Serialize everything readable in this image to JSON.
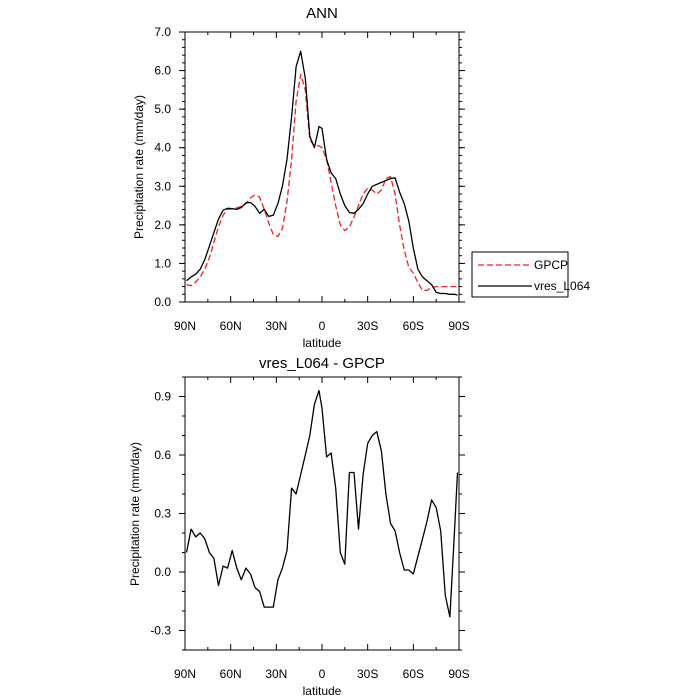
{
  "chart_data": [
    {
      "type": "line",
      "title": "ANN",
      "xlabel": "latitude",
      "ylabel": "Precipitation rate (mm/day)",
      "xlim": [
        90,
        -90
      ],
      "ylim": [
        0,
        7
      ],
      "x_ticks": [
        90,
        60,
        30,
        0,
        -30,
        -60,
        -90
      ],
      "x_tick_labels": [
        "90N",
        "60N",
        "30N",
        "0",
        "30S",
        "60S",
        "90S"
      ],
      "y_ticks": [
        0,
        1,
        2,
        3,
        4,
        5,
        6,
        7
      ],
      "y_tick_labels": [
        "0.0",
        "1.0",
        "2.0",
        "3.0",
        "4.0",
        "5.0",
        "6.0",
        "7.0"
      ],
      "legend": {
        "position": "right",
        "entries": [
          "GPCP",
          "vres_L064"
        ]
      },
      "series": [
        {
          "name": "GPCP",
          "color": "#ee2222",
          "dash": "dashed",
          "x": [
            89,
            86,
            83,
            80,
            77,
            74,
            71,
            68,
            65,
            62,
            59,
            56,
            53,
            50,
            47,
            44,
            41,
            38,
            35,
            32,
            29,
            26,
            23,
            20,
            17,
            14,
            11,
            8,
            5,
            2,
            0,
            -3,
            -6,
            -9,
            -12,
            -15,
            -18,
            -21,
            -24,
            -27,
            -30,
            -33,
            -36,
            -39,
            -42,
            -45,
            -48,
            -51,
            -54,
            -57,
            -60,
            -63,
            -66,
            -69,
            -72,
            -75,
            -78,
            -81,
            -84,
            -87,
            -89
          ],
          "values": [
            0.45,
            0.42,
            0.52,
            0.65,
            0.85,
            1.15,
            1.55,
            1.95,
            2.25,
            2.4,
            2.42,
            2.44,
            2.48,
            2.55,
            2.7,
            2.78,
            2.72,
            2.4,
            2.05,
            1.75,
            1.7,
            1.9,
            2.6,
            3.7,
            5.2,
            5.9,
            5.5,
            4.2,
            4.05,
            4.05,
            4.0,
            3.7,
            3.1,
            2.5,
            2.0,
            1.85,
            1.95,
            2.2,
            2.5,
            2.8,
            2.95,
            2.9,
            2.8,
            2.9,
            3.2,
            3.25,
            2.8,
            2.0,
            1.35,
            0.9,
            0.75,
            0.5,
            0.3,
            0.3,
            0.38,
            0.4,
            0.4,
            0.4,
            0.4,
            0.4,
            0.4
          ]
        },
        {
          "name": "vres_L064",
          "color": "#000000",
          "dash": "solid",
          "x": [
            89,
            86,
            83,
            80,
            77,
            74,
            71,
            68,
            65,
            62,
            59,
            56,
            53,
            50,
            47,
            44,
            41,
            38,
            35,
            32,
            29,
            26,
            23,
            20,
            17,
            14,
            11,
            8,
            5,
            2,
            0,
            -3,
            -6,
            -9,
            -12,
            -15,
            -18,
            -21,
            -24,
            -27,
            -30,
            -33,
            -36,
            -39,
            -42,
            -45,
            -48,
            -51,
            -54,
            -57,
            -60,
            -63,
            -66,
            -69,
            -72,
            -75,
            -78,
            -81,
            -84,
            -87,
            -89
          ],
          "values": [
            0.55,
            0.65,
            0.72,
            0.85,
            1.1,
            1.45,
            1.8,
            2.15,
            2.38,
            2.43,
            2.42,
            2.4,
            2.45,
            2.57,
            2.58,
            2.48,
            2.3,
            2.4,
            2.22,
            2.25,
            2.55,
            3.0,
            3.7,
            4.8,
            6.1,
            6.5,
            5.8,
            4.3,
            4.0,
            4.55,
            4.5,
            3.7,
            3.35,
            3.2,
            2.8,
            2.5,
            2.32,
            2.3,
            2.4,
            2.55,
            2.8,
            3.0,
            3.05,
            3.1,
            3.15,
            3.2,
            3.22,
            2.85,
            2.55,
            2.1,
            1.4,
            0.85,
            0.65,
            0.55,
            0.45,
            0.25,
            0.22,
            0.22,
            0.2,
            0.2,
            0.18
          ]
        }
      ]
    },
    {
      "type": "line",
      "title": "vres_L064 - GPCP",
      "xlabel": "latitude",
      "ylabel": "Precipitation rate (mm/day)",
      "xlim": [
        90,
        -90
      ],
      "ylim": [
        -0.4,
        1.0
      ],
      "x_ticks": [
        90,
        60,
        30,
        0,
        -30,
        -60,
        -90
      ],
      "x_tick_labels": [
        "90N",
        "60N",
        "30N",
        "0",
        "30S",
        "60S",
        "90S"
      ],
      "y_ticks": [
        -0.3,
        0,
        0.3,
        0.6,
        0.9
      ],
      "y_tick_labels": [
        "-0.3",
        "0.0",
        "0.3",
        "0.6",
        "0.9"
      ],
      "series": [
        {
          "name": "vres_L064 - GPCP",
          "color": "#000000",
          "dash": "solid",
          "x": [
            89,
            86,
            83,
            80,
            77,
            74,
            71,
            68,
            65,
            62,
            59,
            56,
            53,
            50,
            47,
            44,
            41,
            38,
            35,
            32,
            29,
            26,
            23,
            20,
            17,
            14,
            11,
            8,
            5,
            2,
            0,
            -3,
            -6,
            -9,
            -12,
            -15,
            -18,
            -21,
            -24,
            -27,
            -30,
            -33,
            -36,
            -39,
            -42,
            -45,
            -48,
            -51,
            -54,
            -57,
            -60,
            -63,
            -66,
            -69,
            -72,
            -75,
            -78,
            -81,
            -84,
            -87,
            -89
          ],
          "values": [
            0.1,
            0.22,
            0.18,
            0.2,
            0.17,
            0.1,
            0.07,
            -0.07,
            0.03,
            0.02,
            0.11,
            0.02,
            -0.04,
            0.02,
            -0.01,
            -0.08,
            -0.1,
            -0.18,
            -0.18,
            -0.18,
            -0.04,
            0.02,
            0.11,
            0.43,
            0.4,
            0.5,
            0.6,
            0.7,
            0.86,
            0.93,
            0.84,
            0.59,
            0.61,
            0.43,
            0.1,
            0.04,
            0.51,
            0.51,
            0.22,
            0.5,
            0.66,
            0.7,
            0.72,
            0.62,
            0.4,
            0.25,
            0.21,
            0.1,
            0.01,
            0.01,
            -0.01,
            0.08,
            0.17,
            0.26,
            0.37,
            0.33,
            0.21,
            -0.12,
            -0.23,
            0.2,
            0.51
          ]
        }
      ]
    }
  ]
}
